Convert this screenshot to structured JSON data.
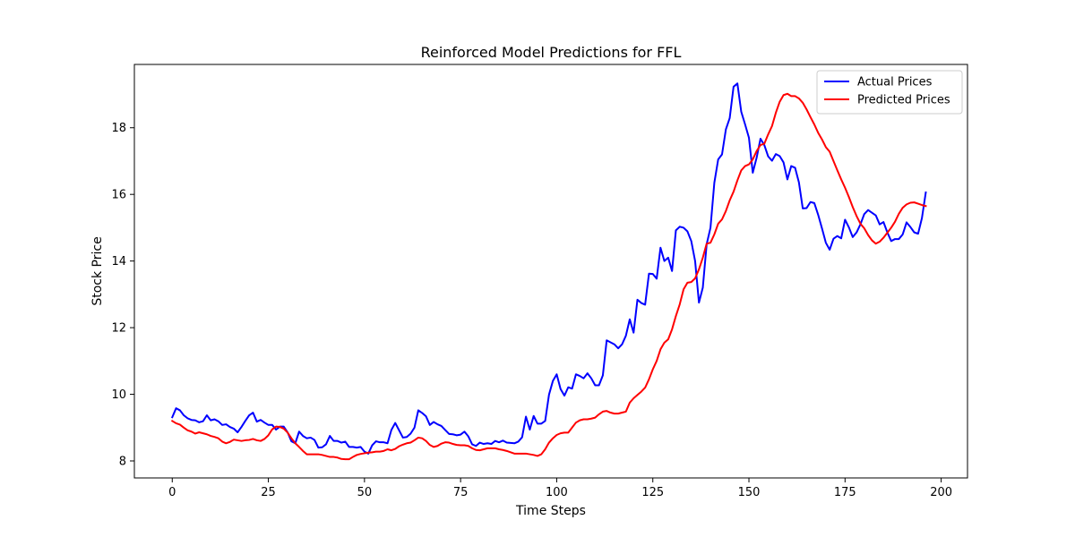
{
  "chart_data": {
    "type": "line",
    "title": "Reinforced Model Predictions for FFL",
    "xlabel": "Time Steps",
    "ylabel": "Stock Price",
    "xlim": [
      -9.85,
      206.85
    ],
    "ylim": [
      7.49,
      19.9
    ],
    "xticks": [
      0,
      25,
      50,
      75,
      100,
      125,
      150,
      175,
      200
    ],
    "yticks": [
      8,
      10,
      12,
      14,
      16,
      18
    ],
    "grid": false,
    "legend_position": "top-right",
    "series": [
      {
        "name": "Actual Prices",
        "color": "#0000ff",
        "values": [
          9.31,
          9.58,
          9.52,
          9.37,
          9.28,
          9.23,
          9.22,
          9.16,
          9.19,
          9.37,
          9.22,
          9.25,
          9.19,
          9.08,
          9.1,
          9.02,
          8.97,
          8.86,
          9.02,
          9.2,
          9.37,
          9.45,
          9.18,
          9.23,
          9.15,
          9.08,
          9.08,
          8.94,
          9.03,
          9.03,
          8.86,
          8.59,
          8.53,
          8.88,
          8.75,
          8.68,
          8.7,
          8.63,
          8.4,
          8.41,
          8.5,
          8.75,
          8.6,
          8.6,
          8.55,
          8.58,
          8.42,
          8.42,
          8.4,
          8.42,
          8.28,
          8.22,
          8.47,
          8.59,
          8.56,
          8.56,
          8.53,
          8.93,
          9.14,
          8.92,
          8.7,
          8.72,
          8.82,
          9.0,
          9.52,
          9.44,
          9.34,
          9.08,
          9.17,
          9.1,
          9.05,
          8.93,
          8.81,
          8.8,
          8.77,
          8.79,
          8.88,
          8.74,
          8.5,
          8.45,
          8.55,
          8.51,
          8.53,
          8.51,
          8.6,
          8.56,
          8.61,
          8.55,
          8.54,
          8.53,
          8.58,
          8.71,
          9.33,
          8.94,
          9.35,
          9.12,
          9.12,
          9.2,
          9.99,
          10.4,
          10.6,
          10.16,
          9.96,
          10.21,
          10.17,
          10.6,
          10.55,
          10.48,
          10.63,
          10.48,
          10.27,
          10.27,
          10.57,
          11.62,
          11.56,
          11.5,
          11.38,
          11.5,
          11.76,
          12.25,
          11.85,
          12.84,
          12.74,
          12.69,
          13.62,
          13.61,
          13.47,
          14.4,
          14.0,
          14.1,
          13.7,
          14.92,
          15.03,
          15.0,
          14.89,
          14.6,
          14.0,
          12.75,
          13.2,
          14.5,
          15.0,
          16.35,
          17.05,
          17.2,
          17.95,
          18.29,
          19.23,
          19.33,
          18.48,
          18.1,
          17.7,
          16.65,
          17.1,
          17.67,
          17.48,
          17.14,
          17.01,
          17.21,
          17.15,
          16.96,
          16.45,
          16.85,
          16.8,
          16.36,
          15.58,
          15.59,
          15.77,
          15.74,
          15.39,
          14.98,
          14.55,
          14.34,
          14.67,
          14.75,
          14.68,
          15.24,
          15.01,
          14.72,
          14.86,
          15.1,
          15.41,
          15.53,
          15.45,
          15.37,
          15.1,
          15.17,
          14.86,
          14.6,
          14.66,
          14.66,
          14.8,
          15.16,
          15.02,
          14.86,
          14.82,
          15.29,
          16.06
        ]
      },
      {
        "name": "Predicted Prices",
        "color": "#ff0000",
        "values": [
          9.2,
          9.13,
          9.09,
          9.0,
          8.92,
          8.88,
          8.82,
          8.86,
          8.83,
          8.8,
          8.75,
          8.72,
          8.68,
          8.58,
          8.53,
          8.57,
          8.64,
          8.62,
          8.6,
          8.62,
          8.63,
          8.66,
          8.62,
          8.6,
          8.66,
          8.77,
          8.95,
          9.03,
          9.02,
          8.97,
          8.85,
          8.68,
          8.53,
          8.42,
          8.3,
          8.2,
          8.2,
          8.2,
          8.2,
          8.18,
          8.15,
          8.12,
          8.12,
          8.1,
          8.06,
          8.05,
          8.05,
          8.12,
          8.18,
          8.21,
          8.23,
          8.25,
          8.26,
          8.28,
          8.28,
          8.3,
          8.35,
          8.32,
          8.36,
          8.44,
          8.49,
          8.53,
          8.55,
          8.62,
          8.7,
          8.68,
          8.6,
          8.48,
          8.42,
          8.45,
          8.52,
          8.56,
          8.55,
          8.51,
          8.48,
          8.47,
          8.47,
          8.45,
          8.38,
          8.33,
          8.32,
          8.35,
          8.38,
          8.38,
          8.38,
          8.35,
          8.33,
          8.3,
          8.26,
          8.22,
          8.22,
          8.22,
          8.22,
          8.2,
          8.18,
          8.15,
          8.2,
          8.35,
          8.55,
          8.68,
          8.78,
          8.83,
          8.85,
          8.85,
          9.0,
          9.15,
          9.22,
          9.25,
          9.25,
          9.27,
          9.3,
          9.4,
          9.48,
          9.5,
          9.45,
          9.42,
          9.42,
          9.45,
          9.48,
          9.75,
          9.88,
          9.98,
          10.08,
          10.2,
          10.45,
          10.75,
          11.0,
          11.35,
          11.55,
          11.65,
          11.95,
          12.35,
          12.7,
          13.15,
          13.35,
          13.37,
          13.48,
          13.75,
          14.1,
          14.52,
          14.55,
          14.8,
          15.12,
          15.25,
          15.5,
          15.82,
          16.08,
          16.42,
          16.72,
          16.85,
          16.9,
          17.05,
          17.3,
          17.48,
          17.52,
          17.8,
          18.05,
          18.45,
          18.78,
          18.98,
          19.02,
          18.95,
          18.95,
          18.88,
          18.75,
          18.55,
          18.32,
          18.1,
          17.85,
          17.65,
          17.42,
          17.28,
          17.0,
          16.72,
          16.45,
          16.2,
          15.92,
          15.62,
          15.35,
          15.12,
          14.98,
          14.78,
          14.62,
          14.52,
          14.58,
          14.7,
          14.85,
          15.0,
          15.18,
          15.42,
          15.6,
          15.7,
          15.75,
          15.76,
          15.72,
          15.68,
          15.65
        ]
      }
    ]
  }
}
